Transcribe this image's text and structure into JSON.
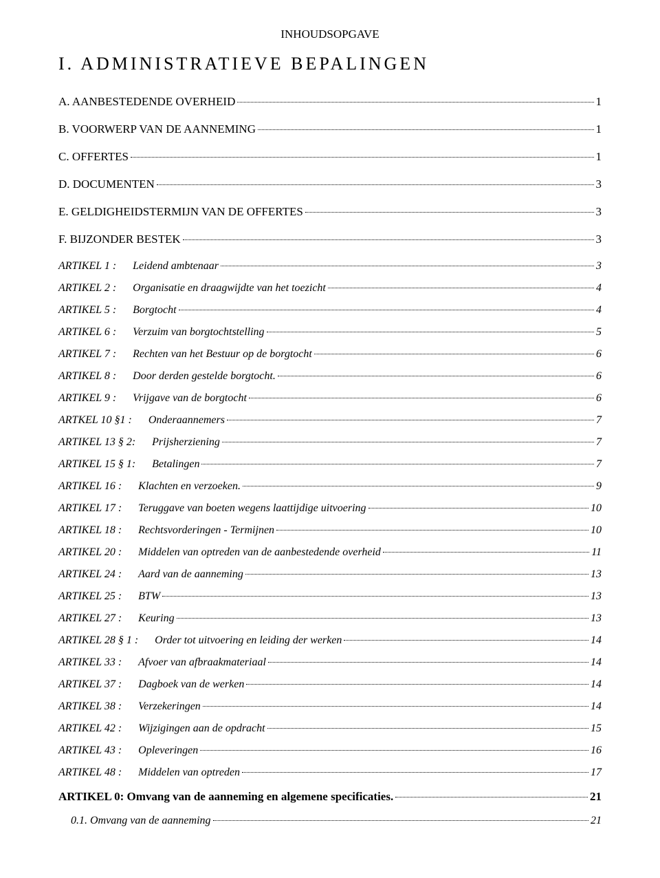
{
  "header": {
    "title": "INHOUDSOPGAVE"
  },
  "main_heading": "I. ADMINISTRATIEVE BEPALINGEN",
  "sections": [
    {
      "label": "A. AANBESTEDENDE OVERHEID",
      "page": "1"
    },
    {
      "label": "B. VOORWERP VAN DE AANNEMING",
      "page": "1"
    },
    {
      "label": "C. OFFERTES",
      "page": "1"
    },
    {
      "label": "D. DOCUMENTEN",
      "page": "3"
    },
    {
      "label": "E. GELDIGHEIDSTERMIJN VAN DE OFFERTES",
      "page": "3"
    },
    {
      "label": "F. BIJZONDER BESTEK",
      "page": "3"
    }
  ],
  "articles": [
    {
      "key": "ARTIKEL 1 :",
      "desc": "Leidend ambtenaar",
      "page": "3"
    },
    {
      "key": "ARTIKEL 2 :",
      "desc": "Organisatie en draagwijdte van het toezicht",
      "page": "4"
    },
    {
      "key": "ARTIKEL 5 :",
      "desc": "Borgtocht",
      "page": "4"
    },
    {
      "key": "ARTIKEL 6 :",
      "desc": "Verzuim van borgtochtstelling",
      "page": "5"
    },
    {
      "key": "ARTIKEL 7 :",
      "desc": "Rechten van het Bestuur op de borgtocht",
      "page": "6"
    },
    {
      "key": "ARTIKEL 8 :",
      "desc": "Door derden gestelde borgtocht.",
      "page": "6"
    },
    {
      "key": "ARTIKEL 9 :",
      "desc": "Vrijgave van de borgtocht",
      "page": "6"
    },
    {
      "key": "ARTKEL 10 §1 :",
      "desc": "Onderaannemers",
      "page": "7"
    },
    {
      "key": "ARTIKEL 13 § 2:",
      "desc": "Prijsherziening",
      "page": "7"
    },
    {
      "key": "ARTIKEL 15 § 1:",
      "desc": "Betalingen",
      "page": "7"
    },
    {
      "key": "ARTIKEL 16 :",
      "desc": "Klachten en verzoeken.",
      "page": "9"
    },
    {
      "key": "ARTIKEL 17 :",
      "desc": "Teruggave van boeten wegens laattijdige uitvoering",
      "page": "10"
    },
    {
      "key": "ARTIKEL 18 :",
      "desc": "Rechtsvorderingen - Termijnen",
      "page": "10"
    },
    {
      "key": "ARTIKEL 20 :",
      "desc": "Middelen van optreden van de aanbestedende overheid",
      "page": "11"
    },
    {
      "key": "ARTIKEL 24 :",
      "desc": "Aard van de aanneming",
      "page": "13"
    },
    {
      "key": "ARTIKEL 25 :",
      "desc": "BTW",
      "page": "13"
    },
    {
      "key": "ARTIKEL 27 :",
      "desc": "Keuring",
      "page": "13"
    },
    {
      "key": "ARTIKEL 28 § 1 :",
      "desc": "Order tot uitvoering en leiding der werken",
      "page": "14"
    },
    {
      "key": "ARTIKEL 33 :",
      "desc": "Afvoer van afbraakmateriaal",
      "page": "14"
    },
    {
      "key": "ARTIKEL 37 :",
      "desc": "Dagboek van de werken",
      "page": "14"
    },
    {
      "key": "ARTIKEL 38 :",
      "desc": "Verzekeringen",
      "page": "14"
    },
    {
      "key": "ARTIKEL 42 :",
      "desc": "Wijzigingen aan de opdracht",
      "page": "15"
    },
    {
      "key": "ARTIKEL 43 :",
      "desc": "Opleveringen",
      "page": "16"
    },
    {
      "key": "ARTIKEL 48 :",
      "desc": "Middelen van optreden",
      "page": "17"
    }
  ],
  "footer": {
    "label": "ARTIKEL 0: Omvang van de aanneming en algemene specificaties.",
    "page": "21"
  },
  "sub": {
    "label": "0.1. Omvang van de aanneming",
    "page": "21"
  }
}
